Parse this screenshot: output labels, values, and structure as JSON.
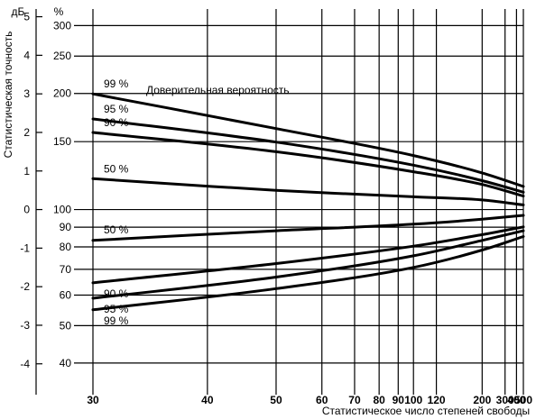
{
  "chart_data": {
    "type": "line",
    "title": "",
    "xlabel": "Статистическое число степеней свободы",
    "ylabel": "Статистическая точность",
    "x_scale": "reciprocal",
    "xlim": [
      30,
      500
    ],
    "x_ticks": [
      30,
      40,
      50,
      60,
      70,
      80,
      90,
      100,
      120,
      200,
      300,
      400,
      500
    ],
    "x_tick_labels": [
      "30",
      "40",
      "50",
      "60",
      "70",
      "80",
      "90",
      "100",
      "120",
      "200",
      "300",
      "400",
      "500"
    ],
    "db_unit": "дБ",
    "db_ticks": [
      {
        "label": "5",
        "v": 5
      },
      {
        "label": "4",
        "v": 4
      },
      {
        "label": "3",
        "v": 3
      },
      {
        "label": "2",
        "v": 2
      },
      {
        "label": "1",
        "v": 1
      },
      {
        "label": "0",
        "v": 0
      },
      {
        "label": "-1",
        "v": -1
      },
      {
        "label": "-2",
        "v": -2
      },
      {
        "label": "-3",
        "v": -3
      },
      {
        "label": "-4",
        "v": -4
      }
    ],
    "pct_unit": "%",
    "pct_ticks": [
      {
        "label": "300",
        "v": 300
      },
      {
        "label": "250",
        "v": 250
      },
      {
        "label": "200",
        "v": 200
      },
      {
        "label": "150",
        "v": 150
      },
      {
        "label": "100",
        "v": 100
      },
      {
        "label": "90",
        "v": 90
      },
      {
        "label": "80",
        "v": 80
      },
      {
        "label": "70",
        "v": 70
      },
      {
        "label": "60",
        "v": 60
      },
      {
        "label": "50",
        "v": 50
      },
      {
        "label": "40",
        "v": 40
      }
    ],
    "ylim_db": [
      -4.8,
      5.2
    ],
    "legend_title": "Доверительная вероятность",
    "grid": true,
    "series": [
      {
        "name": "99 %",
        "x": [
          30,
          50,
          100,
          200,
          500
        ],
        "y_db": [
          3.0,
          2.1,
          1.4,
          0.95,
          0.6
        ]
      },
      {
        "name": "95 %",
        "x": [
          30,
          50,
          100,
          200,
          500
        ],
        "y_db": [
          2.35,
          1.75,
          1.15,
          0.75,
          0.45
        ]
      },
      {
        "name": "90 %",
        "x": [
          30,
          50,
          100,
          200,
          500
        ],
        "y_db": [
          2.0,
          1.5,
          0.98,
          0.65,
          0.35
        ]
      },
      {
        "name": "50 %",
        "x": [
          30,
          50,
          100,
          200,
          500
        ],
        "y_db": [
          0.8,
          0.5,
          0.33,
          0.25,
          0.12
        ]
      },
      {
        "name": "50 %",
        "x": [
          30,
          50,
          100,
          200,
          500
        ],
        "y_db": [
          -0.8,
          -0.55,
          -0.38,
          -0.25,
          -0.15
        ]
      },
      {
        "name": "90 %",
        "x": [
          30,
          50,
          100,
          200,
          500
        ],
        "y_db": [
          -1.9,
          -1.4,
          -0.95,
          -0.65,
          -0.45
        ]
      },
      {
        "name": "95 %",
        "x": [
          30,
          50,
          100,
          200,
          500
        ],
        "y_db": [
          -2.3,
          -1.75,
          -1.2,
          -0.8,
          -0.55
        ]
      },
      {
        "name": "99 %",
        "x": [
          30,
          50,
          100,
          200,
          500
        ],
        "y_db": [
          -2.6,
          -2.05,
          -1.5,
          -1.05,
          -0.7
        ]
      }
    ]
  }
}
